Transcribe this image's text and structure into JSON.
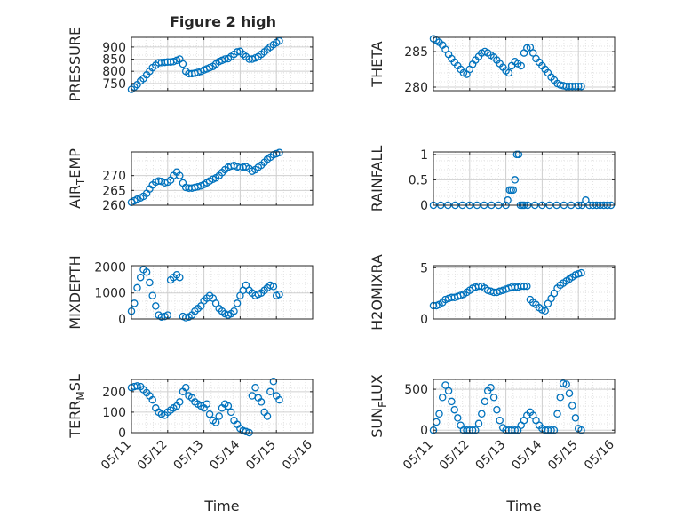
{
  "figure": {
    "title": "Figure 2 high",
    "marker_color": "#0072bd"
  },
  "chart_data": [
    {
      "type": "scatter",
      "ylabel": "PRESSURE",
      "xlim": [
        0,
        5
      ],
      "ylim": [
        720,
        940
      ],
      "yticks": [
        750,
        800,
        850,
        900
      ],
      "grid": true,
      "x": [
        0.0,
        0.08,
        0.16,
        0.25,
        0.33,
        0.42,
        0.5,
        0.58,
        0.67,
        0.75,
        0.83,
        0.92,
        1.0,
        1.08,
        1.16,
        1.25,
        1.33,
        1.42,
        1.5,
        1.58,
        1.67,
        1.75,
        1.83,
        1.92,
        2.0,
        2.08,
        2.16,
        2.25,
        2.33,
        2.42,
        2.5,
        2.58,
        2.67,
        2.75,
        2.83,
        2.92,
        3.0,
        3.08,
        3.16,
        3.25,
        3.33,
        3.42,
        3.5,
        3.58,
        3.67,
        3.75,
        3.83,
        3.92,
        4.0,
        4.08
      ],
      "y": [
        725,
        735,
        745,
        760,
        770,
        785,
        800,
        815,
        825,
        835,
        836,
        837,
        838,
        838,
        840,
        845,
        850,
        830,
        800,
        790,
        790,
        792,
        795,
        800,
        805,
        810,
        815,
        820,
        830,
        840,
        845,
        850,
        852,
        860,
        870,
        880,
        882,
        870,
        860,
        850,
        850,
        855,
        860,
        870,
        880,
        890,
        900,
        910,
        918,
        925
      ]
    },
    {
      "type": "scatter",
      "ylabel": "THETA",
      "xlim": [
        0,
        5
      ],
      "ylim": [
        279.5,
        287
      ],
      "yticks": [
        280,
        285
      ],
      "grid": true,
      "x": [
        0.0,
        0.08,
        0.16,
        0.25,
        0.33,
        0.42,
        0.5,
        0.58,
        0.67,
        0.75,
        0.83,
        0.92,
        1.0,
        1.08,
        1.16,
        1.25,
        1.33,
        1.42,
        1.5,
        1.58,
        1.67,
        1.75,
        1.83,
        1.92,
        2.0,
        2.08,
        2.16,
        2.25,
        2.33,
        2.42,
        2.5,
        2.58,
        2.67,
        2.75,
        2.83,
        2.92,
        3.0,
        3.08,
        3.16,
        3.25,
        3.33,
        3.42,
        3.5,
        3.58,
        3.67,
        3.75,
        3.83,
        3.92,
        4.0,
        4.08
      ],
      "y": [
        286.8,
        286.6,
        286.3,
        285.9,
        285.3,
        284.6,
        284.0,
        283.5,
        283.0,
        282.5,
        282.0,
        281.8,
        282.5,
        283.2,
        283.8,
        284.3,
        284.8,
        285.0,
        284.8,
        284.5,
        284.2,
        283.8,
        283.3,
        282.8,
        282.3,
        282.0,
        283.0,
        283.6,
        283.3,
        283.0,
        284.8,
        285.5,
        285.6,
        284.8,
        284.0,
        283.5,
        283.0,
        282.5,
        282.0,
        281.4,
        281.0,
        280.5,
        280.3,
        280.2,
        280.1,
        280.1,
        280.1,
        280.1,
        280.1,
        280.1
      ]
    },
    {
      "type": "scatter",
      "ylabel": "AIR_TEMP",
      "xlim": [
        0,
        5
      ],
      "ylim": [
        260,
        278
      ],
      "yticks": [
        260,
        265,
        270
      ],
      "grid": true,
      "x": [
        0.0,
        0.08,
        0.16,
        0.25,
        0.33,
        0.42,
        0.5,
        0.58,
        0.67,
        0.75,
        0.83,
        0.92,
        1.0,
        1.08,
        1.16,
        1.25,
        1.33,
        1.42,
        1.5,
        1.58,
        1.67,
        1.75,
        1.83,
        1.92,
        2.0,
        2.08,
        2.16,
        2.25,
        2.33,
        2.42,
        2.5,
        2.58,
        2.67,
        2.75,
        2.83,
        2.92,
        3.0,
        3.08,
        3.16,
        3.25,
        3.33,
        3.42,
        3.5,
        3.58,
        3.67,
        3.75,
        3.83,
        3.92,
        4.0,
        4.08
      ],
      "y": [
        261.0,
        261.5,
        262.0,
        262.5,
        263.0,
        264.0,
        265.5,
        266.8,
        267.8,
        268.2,
        268.0,
        267.6,
        267.8,
        268.5,
        270.0,
        271.2,
        270.0,
        267.5,
        266.0,
        265.8,
        265.8,
        266.0,
        266.2,
        266.5,
        267.0,
        267.6,
        268.2,
        268.8,
        269.2,
        270.0,
        271.0,
        272.0,
        272.8,
        273.2,
        273.4,
        273.0,
        272.6,
        272.8,
        273.0,
        272.4,
        271.5,
        272.0,
        272.8,
        273.5,
        274.5,
        275.5,
        276.2,
        277.0,
        277.4,
        277.8
      ]
    },
    {
      "type": "scatter",
      "ylabel": "RAINFALL",
      "xlim": [
        0,
        5
      ],
      "ylim": [
        0,
        1.05
      ],
      "yticks": [
        0,
        0.5,
        1
      ],
      "grid": true,
      "x": [
        0.0,
        0.2,
        0.4,
        0.6,
        0.8,
        1.0,
        1.2,
        1.4,
        1.6,
        1.8,
        2.0,
        2.05,
        2.1,
        2.15,
        2.2,
        2.25,
        2.3,
        2.35,
        2.4,
        2.45,
        2.5,
        2.6,
        2.8,
        3.0,
        3.2,
        3.4,
        3.6,
        3.8,
        4.0,
        4.1,
        4.2,
        4.3,
        4.4,
        4.5,
        4.6,
        4.7,
        4.8,
        4.9
      ],
      "y": [
        0,
        0,
        0,
        0,
        0,
        0,
        0,
        0,
        0,
        0,
        0,
        0.1,
        0.3,
        0.3,
        0.3,
        0.5,
        1.0,
        1.0,
        0,
        0,
        0,
        0,
        0,
        0,
        0,
        0,
        0,
        0,
        0,
        0,
        0.1,
        0,
        0,
        0,
        0,
        0,
        0,
        0
      ]
    },
    {
      "type": "scatter",
      "ylabel": "MIXDEPTH",
      "xlim": [
        0,
        5
      ],
      "ylim": [
        0,
        2050
      ],
      "yticks": [
        0,
        1000,
        2000
      ],
      "grid": true,
      "x": [
        0.0,
        0.08,
        0.16,
        0.25,
        0.33,
        0.42,
        0.5,
        0.58,
        0.67,
        0.75,
        0.83,
        0.92,
        1.0,
        1.08,
        1.16,
        1.25,
        1.33,
        1.42,
        1.5,
        1.58,
        1.67,
        1.75,
        1.83,
        1.92,
        2.0,
        2.08,
        2.16,
        2.25,
        2.33,
        2.42,
        2.5,
        2.58,
        2.67,
        2.75,
        2.83,
        2.92,
        3.0,
        3.08,
        3.16,
        3.25,
        3.33,
        3.42,
        3.5,
        3.58,
        3.67,
        3.75,
        3.83,
        3.92,
        4.0,
        4.08
      ],
      "y": [
        300,
        600,
        1200,
        1600,
        1900,
        1800,
        1400,
        900,
        500,
        150,
        80,
        100,
        150,
        1500,
        1600,
        1700,
        1600,
        100,
        50,
        80,
        150,
        300,
        400,
        500,
        700,
        800,
        900,
        800,
        600,
        400,
        300,
        200,
        150,
        200,
        300,
        600,
        900,
        1100,
        1300,
        1100,
        1000,
        900,
        950,
        1000,
        1100,
        1200,
        1300,
        1250,
        900,
        950
      ]
    },
    {
      "type": "scatter",
      "ylabel": "H2OMIXRA",
      "xlim": [
        0,
        5
      ],
      "ylim": [
        0,
        5.2
      ],
      "yticks": [
        0,
        5
      ],
      "grid": true,
      "x": [
        0.0,
        0.08,
        0.16,
        0.25,
        0.33,
        0.42,
        0.5,
        0.58,
        0.67,
        0.75,
        0.83,
        0.92,
        1.0,
        1.08,
        1.16,
        1.25,
        1.33,
        1.42,
        1.5,
        1.58,
        1.67,
        1.75,
        1.83,
        1.92,
        2.0,
        2.08,
        2.16,
        2.25,
        2.33,
        2.42,
        2.5,
        2.58,
        2.67,
        2.75,
        2.83,
        2.92,
        3.0,
        3.08,
        3.16,
        3.25,
        3.33,
        3.42,
        3.5,
        3.58,
        3.67,
        3.75,
        3.83,
        3.92,
        4.0,
        4.08
      ],
      "y": [
        1.3,
        1.3,
        1.4,
        1.6,
        1.9,
        2.0,
        2.1,
        2.1,
        2.2,
        2.3,
        2.4,
        2.6,
        2.8,
        3.0,
        3.1,
        3.2,
        3.2,
        3.0,
        2.8,
        2.7,
        2.6,
        2.6,
        2.7,
        2.8,
        2.9,
        3.0,
        3.1,
        3.1,
        3.1,
        3.2,
        3.2,
        3.2,
        1.9,
        1.6,
        1.4,
        1.1,
        0.9,
        0.8,
        1.5,
        2.0,
        2.5,
        3.0,
        3.3,
        3.5,
        3.7,
        3.9,
        4.1,
        4.3,
        4.4,
        4.5
      ]
    },
    {
      "type": "scatter",
      "ylabel": "TERR_MSL",
      "xlim": [
        0,
        5
      ],
      "ylim": [
        0,
        260
      ],
      "yticks": [
        0,
        100,
        200
      ],
      "grid": true,
      "x": [
        0.0,
        0.08,
        0.16,
        0.25,
        0.33,
        0.42,
        0.5,
        0.58,
        0.67,
        0.75,
        0.83,
        0.92,
        1.0,
        1.08,
        1.16,
        1.25,
        1.33,
        1.42,
        1.5,
        1.58,
        1.67,
        1.75,
        1.83,
        1.92,
        2.0,
        2.08,
        2.16,
        2.25,
        2.33,
        2.42,
        2.5,
        2.58,
        2.67,
        2.75,
        2.83,
        2.92,
        3.0,
        3.08,
        3.16,
        3.25,
        3.33,
        3.42,
        3.5,
        3.58,
        3.67,
        3.75,
        3.83,
        3.92,
        4.0,
        4.08
      ],
      "y": [
        220,
        225,
        228,
        225,
        210,
        195,
        180,
        160,
        120,
        100,
        90,
        85,
        100,
        110,
        120,
        130,
        150,
        200,
        220,
        180,
        170,
        150,
        140,
        130,
        120,
        140,
        90,
        60,
        50,
        80,
        120,
        140,
        130,
        100,
        60,
        40,
        20,
        10,
        5,
        0,
        180,
        220,
        170,
        150,
        100,
        80,
        200,
        250,
        180,
        160
      ]
    },
    {
      "type": "scatter",
      "ylabel": "SUN_FLUX",
      "xlim": [
        0,
        5
      ],
      "ylim": [
        -30,
        620
      ],
      "yticks": [
        0,
        500
      ],
      "grid": true,
      "x": [
        0.0,
        0.08,
        0.16,
        0.25,
        0.33,
        0.42,
        0.5,
        0.58,
        0.67,
        0.75,
        0.83,
        0.92,
        1.0,
        1.08,
        1.16,
        1.25,
        1.33,
        1.42,
        1.5,
        1.58,
        1.67,
        1.75,
        1.83,
        1.92,
        2.0,
        2.08,
        2.16,
        2.25,
        2.33,
        2.42,
        2.5,
        2.58,
        2.67,
        2.75,
        2.83,
        2.92,
        3.0,
        3.08,
        3.16,
        3.25,
        3.33,
        3.42,
        3.5,
        3.58,
        3.67,
        3.75,
        3.83,
        3.92,
        4.0,
        4.08
      ],
      "y": [
        0,
        100,
        200,
        400,
        550,
        480,
        350,
        250,
        150,
        60,
        0,
        0,
        0,
        0,
        0,
        80,
        200,
        350,
        480,
        520,
        400,
        250,
        120,
        30,
        0,
        0,
        0,
        0,
        0,
        60,
        120,
        180,
        220,
        180,
        120,
        60,
        20,
        0,
        0,
        0,
        0,
        200,
        400,
        570,
        560,
        450,
        300,
        150,
        20,
        0
      ]
    }
  ],
  "x_axis": {
    "label": "Time",
    "ticks": [
      "05/11",
      "05/12",
      "05/13",
      "05/14",
      "05/15",
      "05/16"
    ]
  }
}
